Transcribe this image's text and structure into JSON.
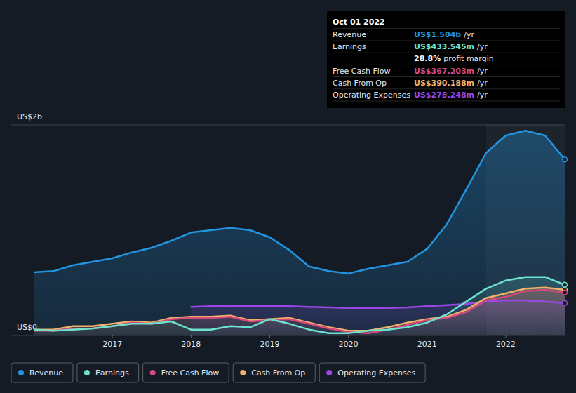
{
  "chart_data": {
    "type": "line",
    "x": [
      2016,
      2016.25,
      2016.5,
      2016.75,
      2017,
      2017.25,
      2017.5,
      2017.75,
      2018,
      2018.25,
      2018.5,
      2018.75,
      2019,
      2019.25,
      2019.5,
      2019.75,
      2020,
      2020.25,
      2020.5,
      2020.75,
      2021,
      2021.25,
      2021.5,
      2021.75,
      2022,
      2022.25,
      2022.5,
      2022.75
    ],
    "xlim": [
      2016,
      2022.75
    ],
    "xticks": [
      2017,
      2018,
      2019,
      2020,
      2021,
      2022
    ],
    "ylim": [
      0,
      1.8
    ],
    "yticks": [
      {
        "value": 0,
        "label": "US$0"
      },
      {
        "value": 1.8,
        "label": "US$2b"
      }
    ],
    "grid": true,
    "legend": "bottom",
    "highlight": [
      2021.75,
      2022.75
    ],
    "series": [
      {
        "name": "Revenue",
        "color": "#2394df",
        "values": [
          0.54,
          0.55,
          0.6,
          0.63,
          0.66,
          0.71,
          0.75,
          0.81,
          0.88,
          0.9,
          0.92,
          0.9,
          0.84,
          0.73,
          0.59,
          0.55,
          0.53,
          0.57,
          0.6,
          0.63,
          0.74,
          0.95,
          1.25,
          1.56,
          1.71,
          1.75,
          1.71,
          1.504
        ]
      },
      {
        "name": "Earnings",
        "color": "#6ce3cf",
        "values": [
          0.05,
          0.04,
          0.05,
          0.06,
          0.08,
          0.1,
          0.1,
          0.12,
          0.05,
          0.05,
          0.08,
          0.07,
          0.14,
          0.1,
          0.05,
          0.02,
          0.02,
          0.04,
          0.05,
          0.07,
          0.11,
          0.18,
          0.29,
          0.4,
          0.47,
          0.5,
          0.5,
          0.4335
        ]
      },
      {
        "name": "Free Cash Flow",
        "color": "#d6497f",
        "values": [
          0.04,
          0.04,
          0.06,
          0.06,
          0.08,
          0.11,
          0.1,
          0.14,
          0.15,
          0.15,
          0.16,
          0.12,
          0.13,
          0.14,
          0.1,
          0.06,
          0.03,
          0.02,
          0.05,
          0.09,
          0.13,
          0.15,
          0.2,
          0.3,
          0.33,
          0.38,
          0.39,
          0.367
        ]
      },
      {
        "name": "Cash From Op",
        "color": "#f0b16a",
        "values": [
          0.05,
          0.05,
          0.08,
          0.08,
          0.1,
          0.12,
          0.11,
          0.15,
          0.16,
          0.16,
          0.17,
          0.13,
          0.14,
          0.15,
          0.11,
          0.07,
          0.04,
          0.04,
          0.07,
          0.11,
          0.14,
          0.16,
          0.22,
          0.32,
          0.36,
          0.4,
          0.41,
          0.39
        ]
      },
      {
        "name": "Operating Expenses",
        "color": "#9b47e8",
        "values": [
          null,
          null,
          null,
          null,
          null,
          null,
          null,
          null,
          0.245,
          0.25,
          0.25,
          0.25,
          0.25,
          0.25,
          0.245,
          0.24,
          0.235,
          0.235,
          0.235,
          0.24,
          0.25,
          0.26,
          0.27,
          0.29,
          0.3,
          0.3,
          0.29,
          0.278
        ]
      }
    ],
    "tooltip": {
      "date": "Oct 01 2022",
      "rows": [
        {
          "label": "Revenue",
          "value": "US$1.504b",
          "suffix": "/yr",
          "color": "#2394df"
        },
        {
          "label": "Earnings",
          "value": "US$433.545m",
          "suffix": "/yr",
          "color": "#6ce3cf"
        },
        {
          "value": "28.8%",
          "suffix": "profit margin",
          "color": "#ffffff"
        },
        {
          "label": "Free Cash Flow",
          "value": "US$367.203m",
          "suffix": "/yr",
          "color": "#d6497f"
        },
        {
          "label": "Cash From Op",
          "value": "US$390.188m",
          "suffix": "/yr",
          "color": "#f0b16a"
        },
        {
          "label": "Operating Expenses",
          "value": "US$278.248m",
          "suffix": "/yr",
          "color": "#9b47e8"
        }
      ]
    }
  }
}
